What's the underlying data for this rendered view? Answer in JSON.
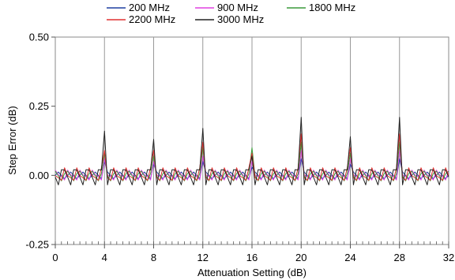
{
  "chart_data": {
    "type": "line",
    "title": "",
    "xlabel": "Attenuation Setting (dB)",
    "ylabel": "Step Error (dB)",
    "xlim": [
      0,
      32
    ],
    "ylim": [
      -0.25,
      0.5
    ],
    "x_ticks": [
      0,
      4,
      8,
      12,
      16,
      20,
      24,
      28,
      32
    ],
    "x_tick_labels": [
      "0",
      "4",
      "8",
      "12",
      "16",
      "20",
      "24",
      "28",
      "32"
    ],
    "y_ticks": [
      -0.25,
      0.0,
      0.25,
      0.5
    ],
    "y_tick_labels": [
      "-0.25",
      "0.00",
      "0.25",
      "0.50"
    ],
    "grid": "vertical",
    "legend_position": "top",
    "x_step": 0.25,
    "series": [
      {
        "name": "200 MHz",
        "color": "#1f3fa0",
        "peaks": {
          "4": 0.05,
          "8": 0.04,
          "12": 0.05,
          "16": 0.03,
          "20": 0.06,
          "24": 0.04,
          "28": 0.06
        },
        "ripple": 0.012
      },
      {
        "name": "900 MHz",
        "color": "#e040e0",
        "peaks": {
          "4": 0.06,
          "8": 0.05,
          "12": 0.07,
          "16": 0.05,
          "20": 0.09,
          "24": 0.06,
          "28": 0.09
        },
        "ripple": 0.015
      },
      {
        "name": "1800 MHz",
        "color": "#3a9a3a",
        "peaks": {
          "4": 0.08,
          "8": 0.07,
          "12": 0.1,
          "16": 0.1,
          "20": 0.12,
          "24": 0.08,
          "28": 0.12
        },
        "ripple": 0.018
      },
      {
        "name": "2200 MHz",
        "color": "#e03030",
        "peaks": {
          "4": 0.09,
          "8": 0.09,
          "12": 0.12,
          "16": 0.08,
          "20": 0.15,
          "24": 0.1,
          "28": 0.15
        },
        "ripple": 0.02
      },
      {
        "name": "3000 MHz",
        "color": "#222222",
        "peaks": {
          "4": 0.16,
          "8": 0.13,
          "12": 0.17,
          "16": 0.07,
          "20": 0.21,
          "24": 0.14,
          "28": 0.21
        },
        "ripple": 0.03
      }
    ]
  }
}
